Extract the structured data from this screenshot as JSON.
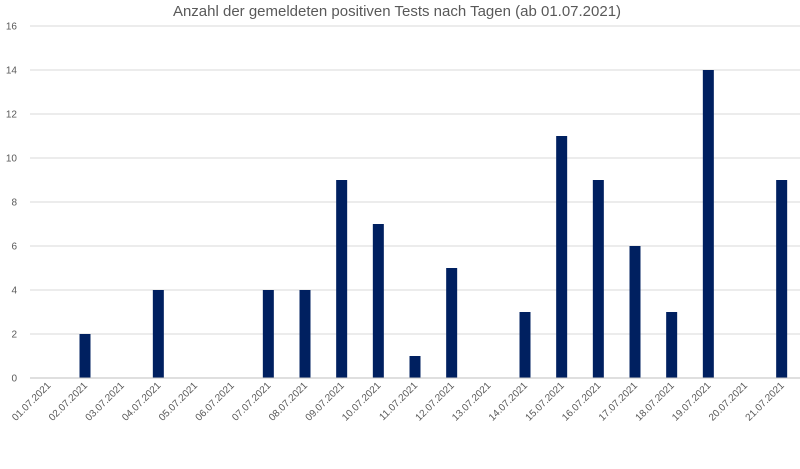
{
  "chart_data": {
    "type": "bar",
    "title": "Anzahl der gemeldeten positiven Tests nach Tagen (ab 01.07.2021)",
    "xlabel": "",
    "ylabel": "",
    "ylim": [
      0,
      16
    ],
    "yticks": [
      0,
      2,
      4,
      6,
      8,
      10,
      12,
      14,
      16
    ],
    "grid": true,
    "bar_color": "#002060",
    "categories": [
      "01.07.2021",
      "02.07.2021",
      "03.07.2021",
      "04.07.2021",
      "05.07.2021",
      "06.07.2021",
      "07.07.2021",
      "08.07.2021",
      "09.07.2021",
      "10.07.2021",
      "11.07.2021",
      "12.07.2021",
      "13.07.2021",
      "14.07.2021",
      "15.07.2021",
      "16.07.2021",
      "17.07.2021",
      "18.07.2021",
      "19.07.2021",
      "20.07.2021",
      "21.07.2021"
    ],
    "values": [
      0,
      2,
      0,
      4,
      0,
      0,
      4,
      4,
      9,
      7,
      1,
      5,
      0,
      3,
      11,
      9,
      6,
      3,
      14,
      0,
      9
    ]
  }
}
